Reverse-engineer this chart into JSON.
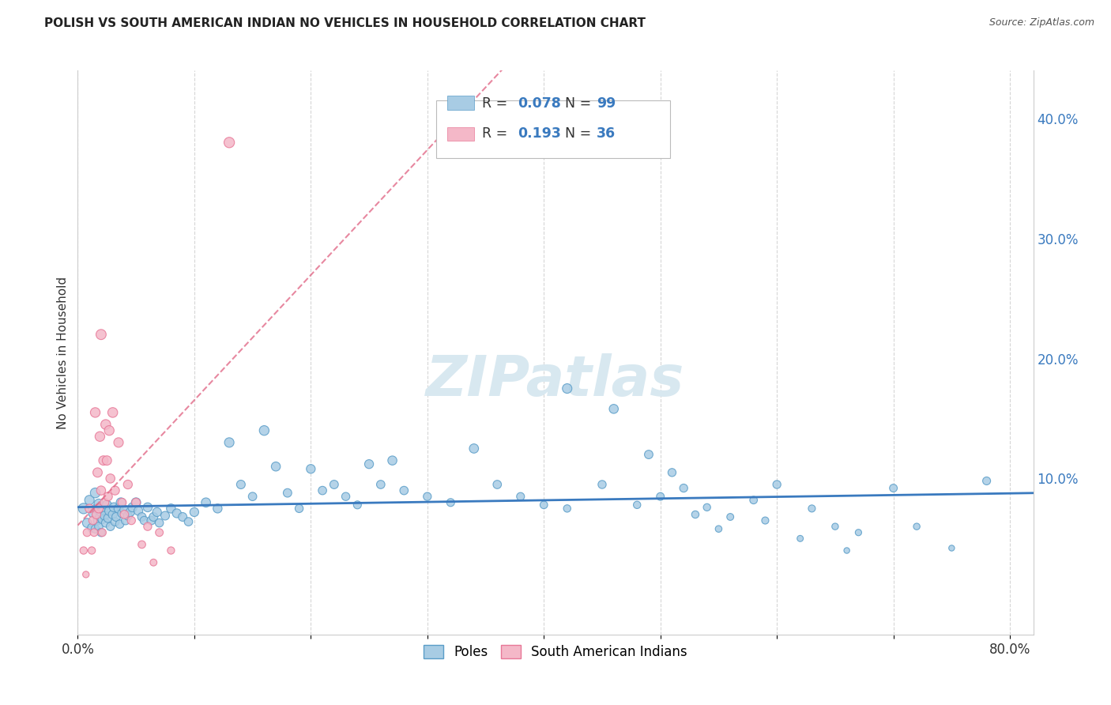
{
  "title": "POLISH VS SOUTH AMERICAN INDIAN NO VEHICLES IN HOUSEHOLD CORRELATION CHART",
  "source": "Source: ZipAtlas.com",
  "ylabel": "No Vehicles in Household",
  "background_color": "#ffffff",
  "grid_color": "#cccccc",
  "xlim": [
    0.0,
    0.82
  ],
  "ylim": [
    -0.03,
    0.44
  ],
  "xtick_pos": [
    0.0,
    0.1,
    0.2,
    0.3,
    0.4,
    0.5,
    0.6,
    0.7,
    0.8
  ],
  "xtick_labels": [
    "0.0%",
    "",
    "",
    "",
    "",
    "",
    "",
    "",
    "80.0%"
  ],
  "ytick_pos": [
    0.0,
    0.1,
    0.2,
    0.3,
    0.4
  ],
  "ytick_labels_right": [
    "",
    "10.0%",
    "20.0%",
    "30.0%",
    "40.0%"
  ],
  "poles_color": "#a8cce4",
  "poles_edge_color": "#5a9dc8",
  "poles_trend_color": "#3a7abf",
  "sa_color": "#f4b8c8",
  "sa_edge_color": "#e87898",
  "sa_trend_color": "#e06080",
  "legend_text_color": "#3a7abf",
  "poles_R": "0.078",
  "poles_N": "99",
  "sa_R": "0.193",
  "sa_N": "36",
  "watermark": "ZIPatlas",
  "watermark_color": "#d8e8f0",
  "poles_x": [
    0.005,
    0.008,
    0.01,
    0.012,
    0.013,
    0.015,
    0.015,
    0.016,
    0.017,
    0.018,
    0.018,
    0.019,
    0.02,
    0.02,
    0.021,
    0.022,
    0.023,
    0.024,
    0.025,
    0.026,
    0.027,
    0.028,
    0.03,
    0.031,
    0.032,
    0.033,
    0.035,
    0.036,
    0.037,
    0.038,
    0.04,
    0.041,
    0.043,
    0.045,
    0.047,
    0.05,
    0.052,
    0.055,
    0.057,
    0.06,
    0.063,
    0.065,
    0.068,
    0.07,
    0.075,
    0.08,
    0.085,
    0.09,
    0.095,
    0.1,
    0.11,
    0.12,
    0.13,
    0.14,
    0.15,
    0.16,
    0.17,
    0.18,
    0.19,
    0.2,
    0.21,
    0.22,
    0.23,
    0.24,
    0.25,
    0.26,
    0.27,
    0.28,
    0.3,
    0.32,
    0.34,
    0.36,
    0.38,
    0.4,
    0.42,
    0.45,
    0.48,
    0.5,
    0.52,
    0.54,
    0.56,
    0.58,
    0.6,
    0.63,
    0.65,
    0.67,
    0.7,
    0.72,
    0.75,
    0.42,
    0.46,
    0.49,
    0.51,
    0.53,
    0.55,
    0.59,
    0.62,
    0.66,
    0.78
  ],
  "poles_y": [
    0.075,
    0.063,
    0.082,
    0.059,
    0.071,
    0.088,
    0.058,
    0.075,
    0.065,
    0.06,
    0.079,
    0.068,
    0.072,
    0.055,
    0.066,
    0.074,
    0.069,
    0.063,
    0.078,
    0.067,
    0.073,
    0.06,
    0.07,
    0.076,
    0.064,
    0.068,
    0.075,
    0.062,
    0.08,
    0.071,
    0.074,
    0.065,
    0.069,
    0.072,
    0.076,
    0.08,
    0.073,
    0.068,
    0.065,
    0.076,
    0.065,
    0.068,
    0.072,
    0.063,
    0.069,
    0.075,
    0.071,
    0.068,
    0.064,
    0.072,
    0.08,
    0.075,
    0.13,
    0.095,
    0.085,
    0.14,
    0.11,
    0.088,
    0.075,
    0.108,
    0.09,
    0.095,
    0.085,
    0.078,
    0.112,
    0.095,
    0.115,
    0.09,
    0.085,
    0.08,
    0.125,
    0.095,
    0.085,
    0.078,
    0.075,
    0.095,
    0.078,
    0.085,
    0.092,
    0.076,
    0.068,
    0.082,
    0.095,
    0.075,
    0.06,
    0.055,
    0.092,
    0.06,
    0.042,
    0.175,
    0.158,
    0.12,
    0.105,
    0.07,
    0.058,
    0.065,
    0.05,
    0.04,
    0.098
  ],
  "poles_sizes": [
    90,
    70,
    75,
    60,
    65,
    80,
    58,
    70,
    62,
    58,
    72,
    65,
    68,
    55,
    62,
    70,
    65,
    60,
    72,
    65,
    68,
    57,
    65,
    70,
    60,
    63,
    68,
    58,
    72,
    65,
    68,
    60,
    63,
    66,
    70,
    72,
    65,
    60,
    57,
    68,
    60,
    62,
    65,
    57,
    62,
    68,
    65,
    62,
    58,
    65,
    70,
    66,
    75,
    62,
    58,
    78,
    68,
    60,
    55,
    65,
    58,
    60,
    55,
    52,
    65,
    58,
    68,
    58,
    54,
    52,
    70,
    58,
    52,
    48,
    45,
    55,
    45,
    50,
    54,
    44,
    40,
    48,
    54,
    42,
    36,
    34,
    50,
    36,
    28,
    75,
    68,
    60,
    54,
    45,
    37,
    42,
    32,
    28,
    52
  ],
  "sa_x": [
    0.005,
    0.007,
    0.008,
    0.01,
    0.012,
    0.013,
    0.014,
    0.015,
    0.016,
    0.017,
    0.018,
    0.019,
    0.02,
    0.021,
    0.022,
    0.023,
    0.024,
    0.025,
    0.026,
    0.027,
    0.028,
    0.03,
    0.032,
    0.035,
    0.038,
    0.04,
    0.043,
    0.046,
    0.05,
    0.055,
    0.06,
    0.065,
    0.07,
    0.08,
    0.13,
    0.02
  ],
  "sa_y": [
    0.04,
    0.02,
    0.055,
    0.075,
    0.04,
    0.065,
    0.055,
    0.155,
    0.07,
    0.105,
    0.075,
    0.135,
    0.09,
    0.055,
    0.115,
    0.08,
    0.145,
    0.115,
    0.085,
    0.14,
    0.1,
    0.155,
    0.09,
    0.13,
    0.08,
    0.07,
    0.095,
    0.065,
    0.08,
    0.045,
    0.06,
    0.03,
    0.055,
    0.04,
    0.38,
    0.22
  ],
  "sa_sizes": [
    45,
    35,
    52,
    62,
    45,
    58,
    50,
    78,
    62,
    72,
    65,
    78,
    68,
    52,
    72,
    62,
    80,
    72,
    62,
    78,
    68,
    80,
    65,
    75,
    60,
    58,
    65,
    55,
    62,
    48,
    54,
    40,
    50,
    44,
    90,
    85
  ]
}
